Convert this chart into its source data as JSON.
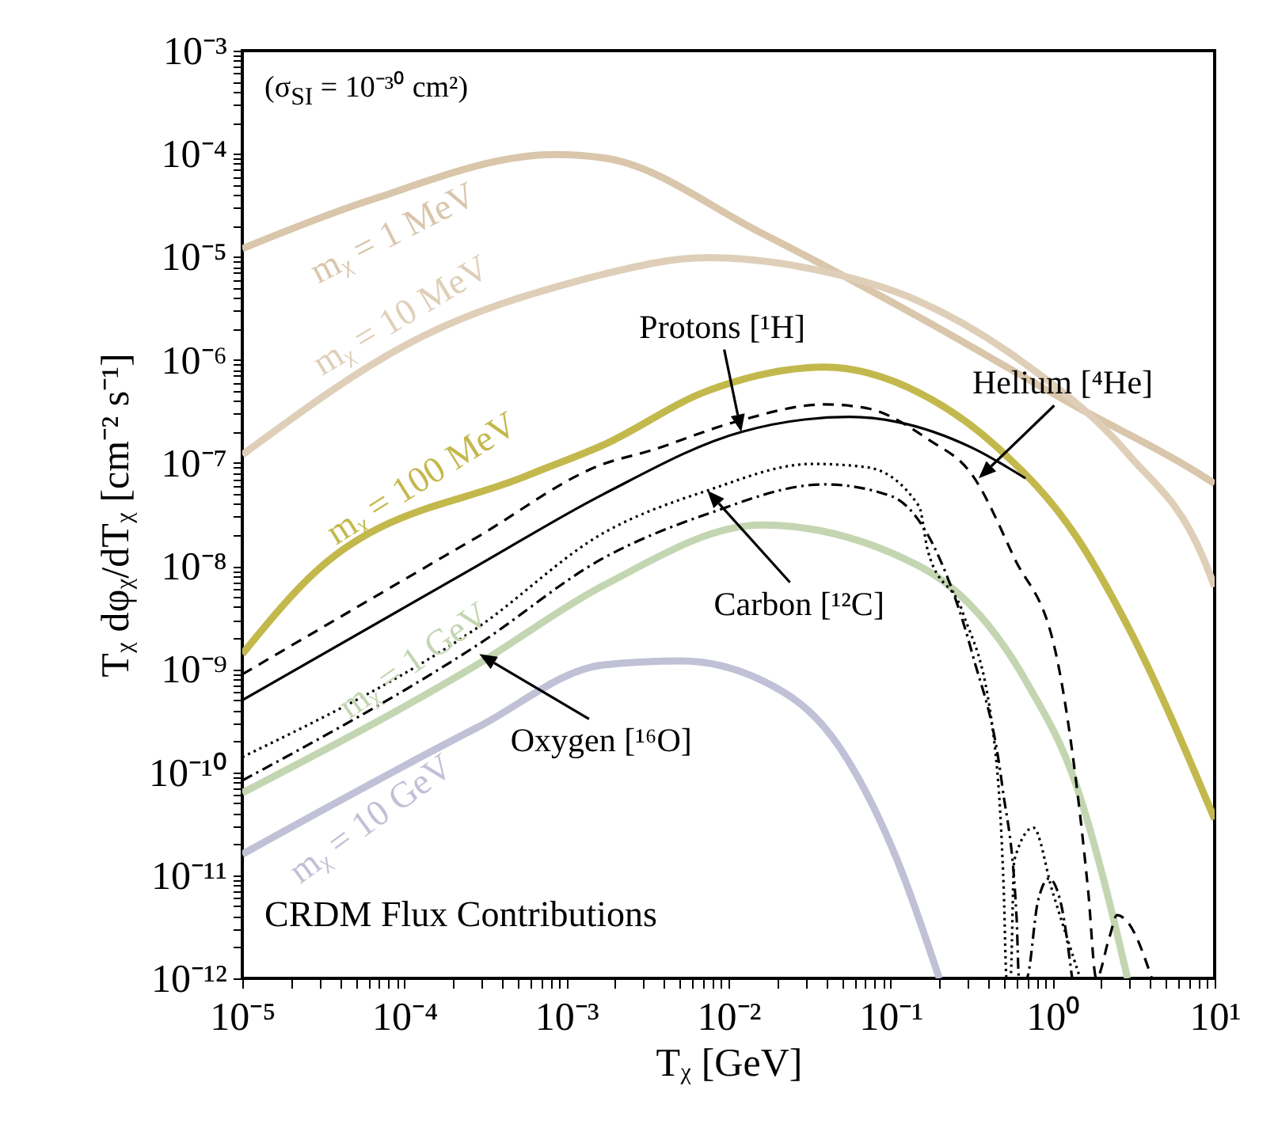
{
  "chart_data": {
    "type": "line",
    "xlabel": "Tᵪ [GeV]",
    "ylabel": "Tᵪ dφᵪ/dTᵪ [cm⁻² s⁻¹]",
    "log": "xy",
    "grid": false,
    "xlim": [
      1e-05,
      10
    ],
    "ylim": [
      1e-12,
      0.001
    ],
    "xticks": [
      {
        "value": 1e-05,
        "label": "10⁻⁵"
      },
      {
        "value": 2e-05,
        "label": null
      },
      {
        "value": 3e-05,
        "label": null
      },
      {
        "value": 4e-05,
        "label": null
      },
      {
        "value": 5e-05,
        "label": null
      },
      {
        "value": 6e-05,
        "label": null
      },
      {
        "value": 7e-05,
        "label": null
      },
      {
        "value": 8e-05,
        "label": null
      },
      {
        "value": 9e-05,
        "label": null
      },
      {
        "value": 0.0001,
        "label": "10⁻⁴"
      },
      {
        "value": 0.0002,
        "label": null
      },
      {
        "value": 0.0003,
        "label": null
      },
      {
        "value": 0.0004,
        "label": null
      },
      {
        "value": 0.0005,
        "label": null
      },
      {
        "value": 0.0006,
        "label": null
      },
      {
        "value": 0.0007,
        "label": null
      },
      {
        "value": 0.0008,
        "label": null
      },
      {
        "value": 0.0009,
        "label": null
      },
      {
        "value": 0.001,
        "label": "10⁻³"
      },
      {
        "value": 0.002,
        "label": null
      },
      {
        "value": 0.003,
        "label": null
      },
      {
        "value": 0.004,
        "label": null
      },
      {
        "value": 0.005,
        "label": null
      },
      {
        "value": 0.006,
        "label": null
      },
      {
        "value": 0.007,
        "label": null
      },
      {
        "value": 0.008,
        "label": null
      },
      {
        "value": 0.009,
        "label": null
      },
      {
        "value": 0.01,
        "label": "10⁻²"
      },
      {
        "value": 0.02,
        "label": null
      },
      {
        "value": 0.03,
        "label": null
      },
      {
        "value": 0.04,
        "label": null
      },
      {
        "value": 0.05,
        "label": null
      },
      {
        "value": 0.06,
        "label": null
      },
      {
        "value": 0.07,
        "label": null
      },
      {
        "value": 0.08,
        "label": null
      },
      {
        "value": 0.09,
        "label": null
      },
      {
        "value": 0.1,
        "label": "10⁻¹"
      },
      {
        "value": 0.2,
        "label": null
      },
      {
        "value": 0.3,
        "label": null
      },
      {
        "value": 0.4,
        "label": null
      },
      {
        "value": 0.5,
        "label": null
      },
      {
        "value": 0.6,
        "label": null
      },
      {
        "value": 0.7,
        "label": null
      },
      {
        "value": 0.8,
        "label": null
      },
      {
        "value": 0.9,
        "label": null
      },
      {
        "value": 1,
        "label": "10⁰"
      },
      {
        "value": 2,
        "label": null
      },
      {
        "value": 3,
        "label": null
      },
      {
        "value": 4,
        "label": null
      },
      {
        "value": 5,
        "label": null
      },
      {
        "value": 6,
        "label": null
      },
      {
        "value": 7,
        "label": null
      },
      {
        "value": 8,
        "label": null
      },
      {
        "value": 9,
        "label": null
      },
      {
        "value": 10,
        "label": "10¹"
      }
    ],
    "yticks": [
      {
        "value": 1e-12,
        "label": "10⁻¹²"
      },
      {
        "value": 2e-12,
        "label": null
      },
      {
        "value": 3e-12,
        "label": null
      },
      {
        "value": 4e-12,
        "label": null
      },
      {
        "value": 5e-12,
        "label": null
      },
      {
        "value": 6e-12,
        "label": null
      },
      {
        "value": 7e-12,
        "label": null
      },
      {
        "value": 8e-12,
        "label": null
      },
      {
        "value": 9e-12,
        "label": null
      },
      {
        "value": 1e-11,
        "label": "10⁻¹¹"
      },
      {
        "value": 2e-11,
        "label": null
      },
      {
        "value": 3e-11,
        "label": null
      },
      {
        "value": 4e-11,
        "label": null
      },
      {
        "value": 5e-11,
        "label": null
      },
      {
        "value": 6e-11,
        "label": null
      },
      {
        "value": 7e-11,
        "label": null
      },
      {
        "value": 8e-11,
        "label": null
      },
      {
        "value": 9e-11,
        "label": null
      },
      {
        "value": 1e-10,
        "label": "10⁻¹⁰"
      },
      {
        "value": 2e-10,
        "label": null
      },
      {
        "value": 3e-10,
        "label": null
      },
      {
        "value": 4e-10,
        "label": null
      },
      {
        "value": 5e-10,
        "label": null
      },
      {
        "value": 6e-10,
        "label": null
      },
      {
        "value": 7e-10,
        "label": null
      },
      {
        "value": 8e-10,
        "label": null
      },
      {
        "value": 9e-10,
        "label": null
      },
      {
        "value": 1e-09,
        "label": "10⁻⁹"
      },
      {
        "value": 2e-09,
        "label": null
      },
      {
        "value": 3e-09,
        "label": null
      },
      {
        "value": 4e-09,
        "label": null
      },
      {
        "value": 5e-09,
        "label": null
      },
      {
        "value": 6e-09,
        "label": null
      },
      {
        "value": 7e-09,
        "label": null
      },
      {
        "value": 8e-09,
        "label": null
      },
      {
        "value": 9e-09,
        "label": null
      },
      {
        "value": 1e-08,
        "label": "10⁻⁸"
      },
      {
        "value": 2e-08,
        "label": null
      },
      {
        "value": 3e-08,
        "label": null
      },
      {
        "value": 4e-08,
        "label": null
      },
      {
        "value": 5e-08,
        "label": null
      },
      {
        "value": 6e-08,
        "label": null
      },
      {
        "value": 7e-08,
        "label": null
      },
      {
        "value": 8e-08,
        "label": null
      },
      {
        "value": 9e-08,
        "label": null
      },
      {
        "value": 1e-07,
        "label": "10⁻⁷"
      },
      {
        "value": 2e-07,
        "label": null
      },
      {
        "value": 3e-07,
        "label": null
      },
      {
        "value": 4e-07,
        "label": null
      },
      {
        "value": 5e-07,
        "label": null
      },
      {
        "value": 6e-07,
        "label": null
      },
      {
        "value": 7e-07,
        "label": null
      },
      {
        "value": 8e-07,
        "label": null
      },
      {
        "value": 9e-07,
        "label": null
      },
      {
        "value": 1e-06,
        "label": "10⁻⁶"
      },
      {
        "value": 2e-06,
        "label": null
      },
      {
        "value": 3e-06,
        "label": null
      },
      {
        "value": 4e-06,
        "label": null
      },
      {
        "value": 5e-06,
        "label": null
      },
      {
        "value": 6e-06,
        "label": null
      },
      {
        "value": 7e-06,
        "label": null
      },
      {
        "value": 8e-06,
        "label": null
      },
      {
        "value": 9e-06,
        "label": null
      },
      {
        "value": 1e-05,
        "label": "10⁻⁵"
      },
      {
        "value": 2e-05,
        "label": null
      },
      {
        "value": 3e-05,
        "label": null
      },
      {
        "value": 4e-05,
        "label": null
      },
      {
        "value": 5e-05,
        "label": null
      },
      {
        "value": 6e-05,
        "label": null
      },
      {
        "value": 7e-05,
        "label": null
      },
      {
        "value": 8e-05,
        "label": null
      },
      {
        "value": 9e-05,
        "label": null
      },
      {
        "value": 0.0001,
        "label": "10⁻⁴"
      },
      {
        "value": 0.0002,
        "label": null
      },
      {
        "value": 0.0003,
        "label": null
      },
      {
        "value": 0.0004,
        "label": null
      },
      {
        "value": 0.0005,
        "label": null
      },
      {
        "value": 0.0006,
        "label": null
      },
      {
        "value": 0.0007,
        "label": null
      },
      {
        "value": 0.0008,
        "label": null
      },
      {
        "value": 0.0009,
        "label": null
      },
      {
        "value": 0.001,
        "label": "10⁻³"
      }
    ],
    "series": [
      {
        "name": "mᵪ = 1 MeV",
        "color": "#d9c6ab",
        "x": [
          1e-05,
          6e-05,
          0.00085,
          0.0017,
          0.016,
          0.15,
          1.41,
          7.4,
          10
        ],
        "values": [
          1.2e-05,
          3.5e-05,
          9.8e-05,
          9.1e-05,
          1.7e-05,
          2.6e-06,
          3.5e-07,
          8.5e-08,
          6.3e-08
        ]
      },
      {
        "name": "mᵪ = 10 MeV",
        "color": "#dfcfb8",
        "x": [
          1e-05,
          0.00013,
          0.0012,
          0.0017,
          0.0074,
          0.033,
          0.15,
          0.68,
          2.95,
          8.5,
          10
        ],
        "values": [
          1.2e-07,
          1.7e-06,
          5.9e-06,
          6.8e-06,
          9.8e-06,
          7.6e-06,
          3.7e-06,
          9.1e-07,
          1.2e-07,
          1.2e-08,
          6.3e-09
        ]
      },
      {
        "name": "mᵪ = 1 GeV",
        "color": "#c3d6b1",
        "x": [
          1e-05,
          0.00028,
          0.0017,
          0.016,
          0.15,
          0.68,
          1.41,
          2.6,
          2.9
        ],
        "values": [
          6.3e-11,
          1.1e-09,
          6.5e-09,
          2.5e-08,
          1e-08,
          7.8e-10,
          7.2e-11,
          2.1e-12,
          1e-12
        ]
      },
      {
        "name": "mᵪ = 10 GeV",
        "color": "#c0c0d6",
        "x": [
          1e-05,
          0.00028,
          0.0017,
          0.0051,
          0.016,
          0.049,
          0.11,
          0.2
        ],
        "values": [
          1.6e-11,
          2.7e-10,
          1.1e-09,
          1.2e-09,
          7.8e-10,
          1.7e-10,
          1.4e-11,
          1e-12
        ]
      },
      {
        "name": "mᵪ = 100 MeV",
        "color": "#c3b84c",
        "x": [
          1e-05,
          2.9e-05,
          0.00058,
          0.0017,
          0.0074,
          0.039,
          0.15,
          0.46,
          1.41,
          2.95,
          10
        ],
        "values": [
          1.4e-09,
          9.1e-09,
          7.6e-08,
          1.5e-07,
          5e-07,
          8.5e-07,
          4.8e-07,
          1.4e-07,
          1.9e-08,
          2.5e-09,
          3.5e-11
        ]
      },
      {
        "color": "#000000",
        "line_style": "dashed",
        "x": [
          1e-05,
          0.00028,
          0.0017,
          0.0032,
          0.011,
          0.039,
          0.071,
          0.17,
          0.32,
          0.58,
          1.05,
          1.41,
          1.66,
          1.86,
          2.24,
          2.5,
          2.95,
          4.1
        ],
        "values": [
          8.9e-10,
          1.9e-08,
          9.8e-08,
          1.3e-07,
          2.5e-07,
          3.7e-07,
          3.4e-07,
          1.7e-07,
          7.6e-08,
          1.2e-08,
          1.4e-09,
          7.2e-11,
          6.9e-12,
          1e-12,
          2.5e-12,
          4.1e-12,
          3.4e-12,
          1e-12
        ]
      },
      {
        "color": "#000000",
        "line_style": "solid",
        "x": [
          1e-05,
          0.00028,
          0.0017,
          0.012,
          0.056,
          0.11,
          0.32,
          0.68
        ],
        "values": [
          5e-10,
          1e-08,
          5e-08,
          2e-07,
          2.8e-07,
          2.5e-07,
          1.4e-07,
          7.1e-08
        ]
      },
      {
        "color": "#000000",
        "line_style": "dotted",
        "x": [
          1e-05,
          0.00028,
          0.0017,
          0.0074,
          0.033,
          0.071,
          0.15,
          0.17,
          0.28,
          0.43,
          0.5,
          0.52,
          0.55,
          0.58,
          0.76,
          1.0,
          1.48
        ],
        "values": [
          1.4e-10,
          2.5e-09,
          2.1e-08,
          5.4e-08,
          9.8e-08,
          9.1e-08,
          3.8e-08,
          1.4e-08,
          3.5e-09,
          2.4e-10,
          6.9e-12,
          1e-12,
          1e-12,
          1.4e-11,
          2.9e-11,
          6.9e-12,
          1e-12
        ]
      },
      {
        "color": "#000000",
        "line_style": "dashdot",
        "x": [
          1e-05,
          0.00028,
          0.0017,
          0.0074,
          0.039,
          0.1,
          0.2,
          0.32,
          0.49,
          0.6,
          0.62,
          0.69,
          0.81,
          0.95,
          1.12,
          1.32
        ],
        "values": [
          8.3e-11,
          1.7e-09,
          1.2e-08,
          3.2e-08,
          6.2e-08,
          4.8e-08,
          1.2e-08,
          1.4e-09,
          7.2e-11,
          3.8e-12,
          1e-12,
          1e-12,
          5.5e-12,
          9.3e-12,
          5.5e-12,
          1e-12
        ]
      }
    ],
    "annotations": [
      "(σ$_{SI}$ = 10⁻³⁰ cm²)",
      "CRDM Flux Contributions",
      {
        "text": "Protons [¹H]",
        "x": 0.012,
        "y": 2e-07
      },
      {
        "text": "Helium [⁴He]",
        "x": 0.35,
        "y": 7.1e-08
      },
      {
        "text": "Carbon [¹²C]",
        "x": 0.0074,
        "y": 5.4e-08
      },
      {
        "text": "Oxygen [¹⁶O]",
        "x": 0.00029,
        "y": 1.4e-09
      }
    ]
  }
}
